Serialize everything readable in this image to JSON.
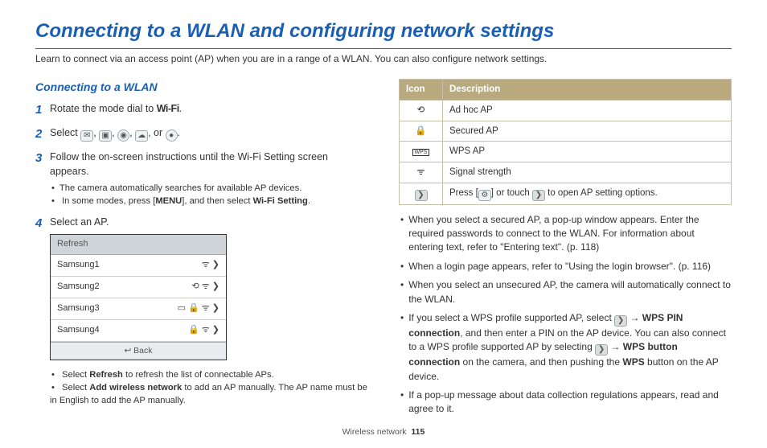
{
  "title": "Connecting to a WLAN and configuring network settings",
  "subtitle": "Learn to connect via an access point (AP) when you are in a range of a WLAN. You can also configure network settings.",
  "section_title": "Connecting to a WLAN",
  "steps": {
    "s1_a": "Rotate the mode dial to ",
    "s1_wifi": "Wi-Fi",
    "s1_b": ".",
    "s2_a": "Select ",
    "s2_mid": ", ",
    "s2_or": ", or ",
    "s2_end": ".",
    "s3": "Follow the on-screen instructions until the Wi-Fi Setting screen appears.",
    "s3_b1": "The camera automatically searches for available AP devices.",
    "s3_b2a": "In some modes, press [",
    "s3_menu": "MENU",
    "s3_b2b": "], and then select ",
    "s3_b2c": "Wi-Fi Setting",
    "s3_b2d": ".",
    "s4": "Select an AP."
  },
  "ap_list": {
    "head": "Refresh",
    "rows": [
      "Samsung1",
      "Samsung2",
      "Samsung3",
      "Samsung4"
    ],
    "foot": "↩  Back"
  },
  "after_list": {
    "b1a": "Select ",
    "b1b": "Refresh",
    "b1c": " to refresh the list of connectable APs.",
    "b2a": "Select ",
    "b2b": "Add wireless network",
    "b2c": " to add an AP manually. The AP name must be in English to add the AP manually."
  },
  "table": {
    "h1": "Icon",
    "h2": "Description",
    "rows": [
      {
        "desc": "Ad hoc AP"
      },
      {
        "desc": "Secured AP"
      },
      {
        "desc": "WPS AP"
      },
      {
        "desc": "Signal strength"
      }
    ],
    "last_a": "Press [",
    "last_b": "] or touch ",
    "last_c": " to open AP setting options."
  },
  "right_bullets": {
    "b1": "When you select a secured AP, a pop-up window appears. Enter the required passwords to connect to the WLAN. For information about entering text, refer to \"Entering text\". (p. 118)",
    "b2": "When a login page appears, refer to \"Using the login browser\". (p. 116)",
    "b3": "When you select an unsecured AP, the camera will automatically connect to the WLAN.",
    "b4_a": "If you select a WPS profile supported AP, select ",
    "b4_b": " → ",
    "b4_c": "WPS PIN connection",
    "b4_d": ", and then enter a PIN on the AP device. You can also connect to a WPS profile supported AP by selecting ",
    "b4_e": " → ",
    "b4_f": "WPS button connection",
    "b4_g": " on the camera, and then pushing the ",
    "b4_h": "WPS",
    "b4_i": " button on the AP device.",
    "b5": "If a pop-up message about data collection regulations appears, read and agree to it."
  },
  "footer": {
    "section": "Wireless network",
    "page": "115"
  },
  "colors": {
    "heading_blue": "#1a5fb4",
    "table_header_bg": "#b9a97e",
    "table_border": "#c8bfa8"
  }
}
